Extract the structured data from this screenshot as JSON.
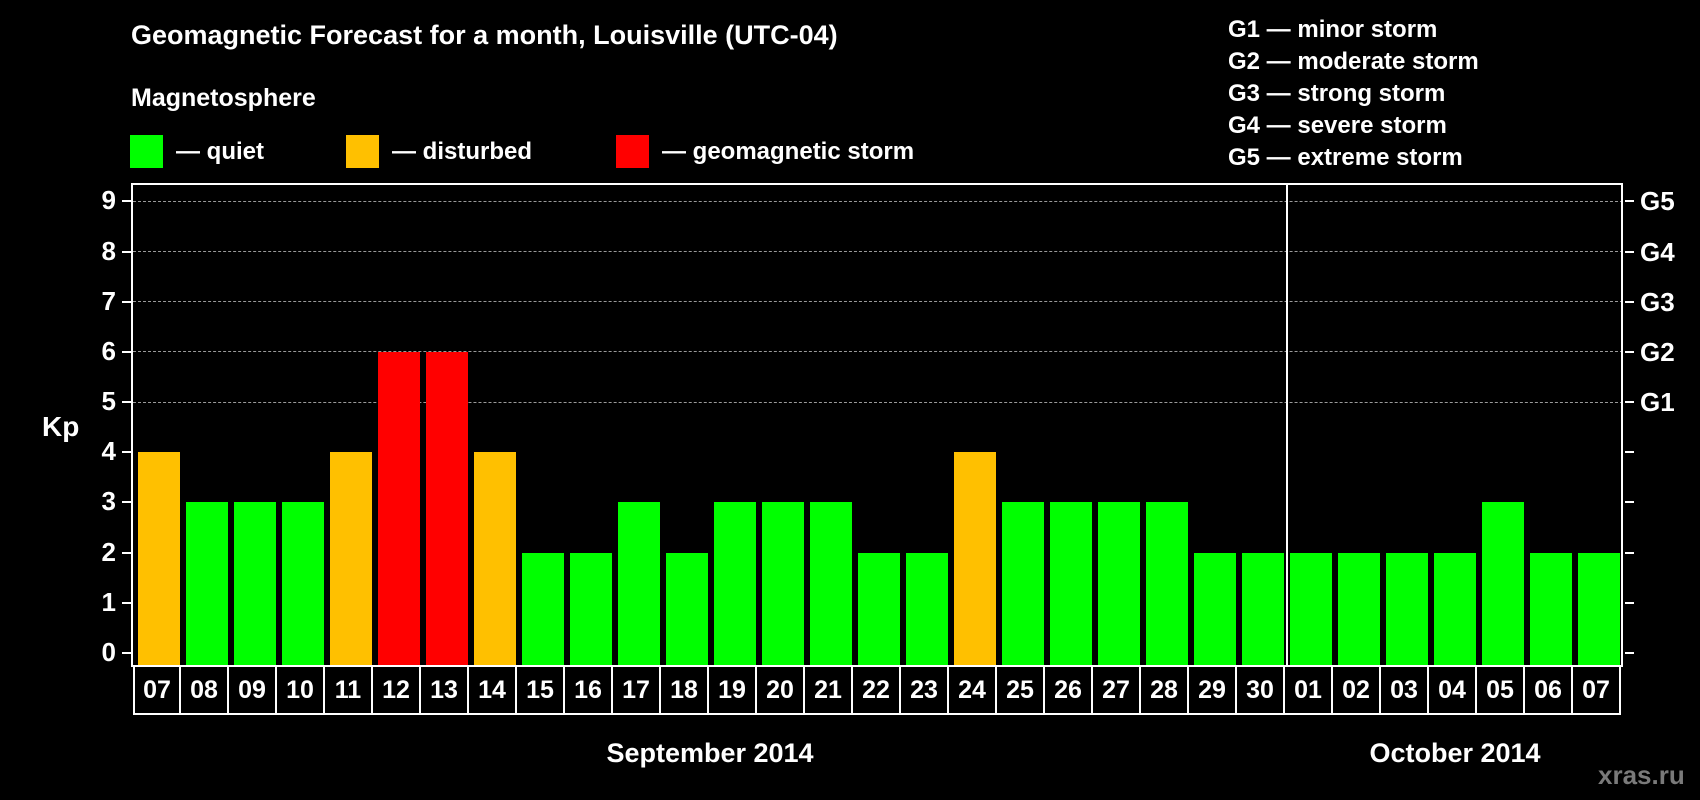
{
  "title": "Geomagnetic Forecast for a month, Louisville (UTC-04)",
  "subtitle": "Magnetosphere",
  "legend": [
    {
      "label": "— quiet",
      "color": "#00ff00"
    },
    {
      "label": "— disturbed",
      "color": "#ffc000"
    },
    {
      "label": "— geomagnetic storm",
      "color": "#ff0000"
    }
  ],
  "g_legend": [
    "G1 — minor storm",
    "G2 — moderate storm",
    "G3 — strong storm",
    "G4 — severe storm",
    "G5 — extreme storm"
  ],
  "y_axis_label": "Kp",
  "months": [
    {
      "label": "September 2014"
    },
    {
      "label": "October 2014"
    }
  ],
  "watermark": "xras.ru",
  "colors": {
    "quiet": "#00ff00",
    "disturbed": "#ffc000",
    "storm": "#ff0000",
    "grid": "#9a9a9a",
    "background": "#000000"
  },
  "chart_data": {
    "type": "bar",
    "title": "Geomagnetic Forecast for a month, Louisville (UTC-04)",
    "subtitle": "Magnetosphere",
    "xlabel": "",
    "ylabel": "Kp",
    "ylim": [
      0,
      9
    ],
    "yticks": [
      0,
      1,
      2,
      3,
      4,
      5,
      6,
      7,
      8,
      9
    ],
    "right_axis_ticks": [
      {
        "kp": 5,
        "label": "G1"
      },
      {
        "kp": 6,
        "label": "G2"
      },
      {
        "kp": 7,
        "label": "G3"
      },
      {
        "kp": 8,
        "label": "G4"
      },
      {
        "kp": 9,
        "label": "G5"
      }
    ],
    "grid": "dashed horizontal lines at Kp 5–9",
    "categories": [
      "07",
      "08",
      "09",
      "10",
      "11",
      "12",
      "13",
      "14",
      "15",
      "16",
      "17",
      "18",
      "19",
      "20",
      "21",
      "22",
      "23",
      "24",
      "25",
      "26",
      "27",
      "28",
      "29",
      "30",
      "01",
      "02",
      "03",
      "04",
      "05",
      "06",
      "07"
    ],
    "month_groups": [
      {
        "label": "September 2014",
        "start_index": 0,
        "end_index": 23
      },
      {
        "label": "October 2014",
        "start_index": 24,
        "end_index": 30
      }
    ],
    "values": [
      4,
      3,
      3,
      3,
      4,
      6,
      6,
      4,
      2,
      2,
      3,
      2,
      3,
      3,
      3,
      2,
      2,
      4,
      3,
      3,
      3,
      3,
      2,
      2,
      2,
      2,
      2,
      2,
      3,
      2,
      2
    ],
    "status": [
      "disturbed",
      "quiet",
      "quiet",
      "quiet",
      "disturbed",
      "storm",
      "storm",
      "disturbed",
      "quiet",
      "quiet",
      "quiet",
      "quiet",
      "quiet",
      "quiet",
      "quiet",
      "quiet",
      "quiet",
      "disturbed",
      "quiet",
      "quiet",
      "quiet",
      "quiet",
      "quiet",
      "quiet",
      "quiet",
      "quiet",
      "quiet",
      "quiet",
      "quiet",
      "quiet",
      "quiet"
    ],
    "legend": [
      {
        "label": "quiet",
        "color": "#00ff00"
      },
      {
        "label": "disturbed",
        "color": "#ffc000"
      },
      {
        "label": "geomagnetic storm",
        "color": "#ff0000"
      }
    ],
    "legend_position": "top-left"
  }
}
